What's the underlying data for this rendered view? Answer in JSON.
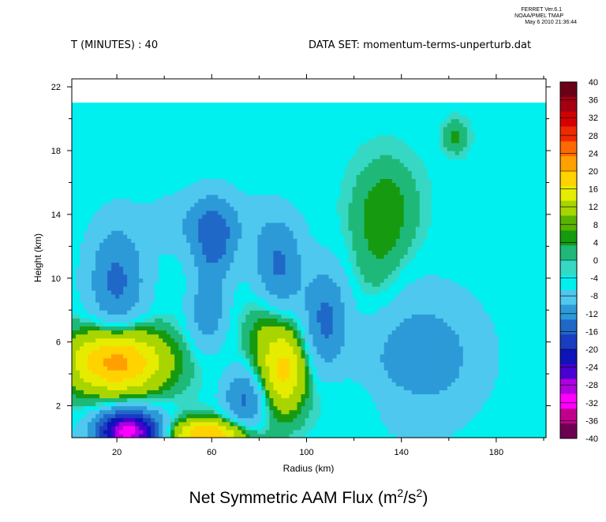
{
  "header": {
    "ferret_line1": "FERRET Ver.6.1",
    "ferret_line2": "NOAA/PMEL TMAP",
    "ferret_line3": "May  6 2010 21:36:44",
    "time_label": "T (MINUTES) : 40",
    "dataset_label": "DATA SET: momentum-terms-unperturb.dat"
  },
  "chart_data": {
    "type": "heatmap",
    "title_main": "Net Symmetric AAM Flux (m",
    "title_sup1": "2",
    "title_mid": "/s",
    "title_sup2": "2",
    "title_end": ")",
    "xlabel": "Radius (km)",
    "ylabel": "Height (km)",
    "xlim": [
      1,
      201
    ],
    "ylim": [
      0,
      22.5
    ],
    "data_ymax": 21,
    "x_ticks": [
      20,
      60,
      100,
      140,
      180
    ],
    "x_minor_ticks": [
      0,
      40,
      80,
      120,
      160,
      200
    ],
    "y_ticks": [
      2,
      6,
      10,
      14,
      18,
      22
    ],
    "y_minor_ticks": [
      4,
      8,
      12,
      16,
      20
    ],
    "colorbar": {
      "levels": [
        40,
        36,
        32,
        28,
        24,
        20,
        16,
        12,
        8,
        4,
        0,
        -4,
        -8,
        -12,
        -16,
        -20,
        -24,
        -28,
        -32,
        -36,
        -40
      ],
      "labels": [
        "40",
        "36",
        "32",
        "28",
        "24",
        "20",
        "16",
        "12",
        "8",
        "4",
        "0",
        "-4",
        "-8",
        "-12",
        "-16",
        "-20",
        "-24",
        "-28",
        "-32",
        "-36",
        "-40"
      ],
      "colors": [
        "#6b0016",
        "#a30012",
        "#d40000",
        "#f02a00",
        "#ff6a00",
        "#ff9f00",
        "#ffd200",
        "#e6ec00",
        "#a8d400",
        "#58b400",
        "#169a10",
        "#1eb878",
        "#36d8c4",
        "#00f0f0",
        "#4ec8ee",
        "#2d9ad8",
        "#1f68c8",
        "#1a3cc0",
        "#0d14b8",
        "#4a00d0",
        "#b000e0",
        "#ff00ff",
        "#c0008c",
        "#6e0052"
      ]
    },
    "background_color": "#00eeee",
    "features": [
      {
        "x": 20,
        "y": 4.8,
        "value": 18,
        "sx": 14,
        "sy": 1.4
      },
      {
        "x": 25,
        "y": 0.4,
        "value": -30,
        "sx": 9,
        "sy": 0.9
      },
      {
        "x": 58,
        "y": 0.2,
        "value": 16,
        "sx": 11,
        "sy": 0.7
      },
      {
        "x": 91,
        "y": 4.3,
        "value": 12,
        "sx": 6,
        "sy": 1.8
      },
      {
        "x": 74,
        "y": 2.4,
        "value": -9,
        "sx": 6,
        "sy": 1.3
      },
      {
        "x": 20,
        "y": 9.8,
        "value": -9,
        "sx": 8,
        "sy": 2.4
      },
      {
        "x": 61,
        "y": 12.2,
        "value": -9,
        "sx": 6,
        "sy": 1.8
      },
      {
        "x": 58,
        "y": 7.8,
        "value": -7,
        "sx": 5,
        "sy": 1.4
      },
      {
        "x": 88,
        "y": 10.8,
        "value": -9,
        "sx": 7,
        "sy": 2.0
      },
      {
        "x": 108,
        "y": 7.5,
        "value": -9,
        "sx": 6,
        "sy": 2.1
      },
      {
        "x": 148,
        "y": 5.0,
        "value": -7,
        "sx": 17,
        "sy": 2.7
      },
      {
        "x": 57,
        "y": 13.5,
        "value": -4,
        "sx": 15,
        "sy": 1.3
      },
      {
        "x": 134,
        "y": 14.5,
        "value": 3,
        "sx": 9,
        "sy": 2.0
      },
      {
        "x": 130,
        "y": 11,
        "value": 2,
        "sx": 8,
        "sy": 3.0
      },
      {
        "x": 163,
        "y": 18.9,
        "value": 3,
        "sx": 3.5,
        "sy": 0.7
      },
      {
        "x": 82,
        "y": 6.0,
        "value": 4,
        "sx": 6,
        "sy": 2.4
      },
      {
        "x": 130,
        "y": 2.6,
        "value": 1.2,
        "sx": 22,
        "sy": 1.2
      }
    ]
  }
}
